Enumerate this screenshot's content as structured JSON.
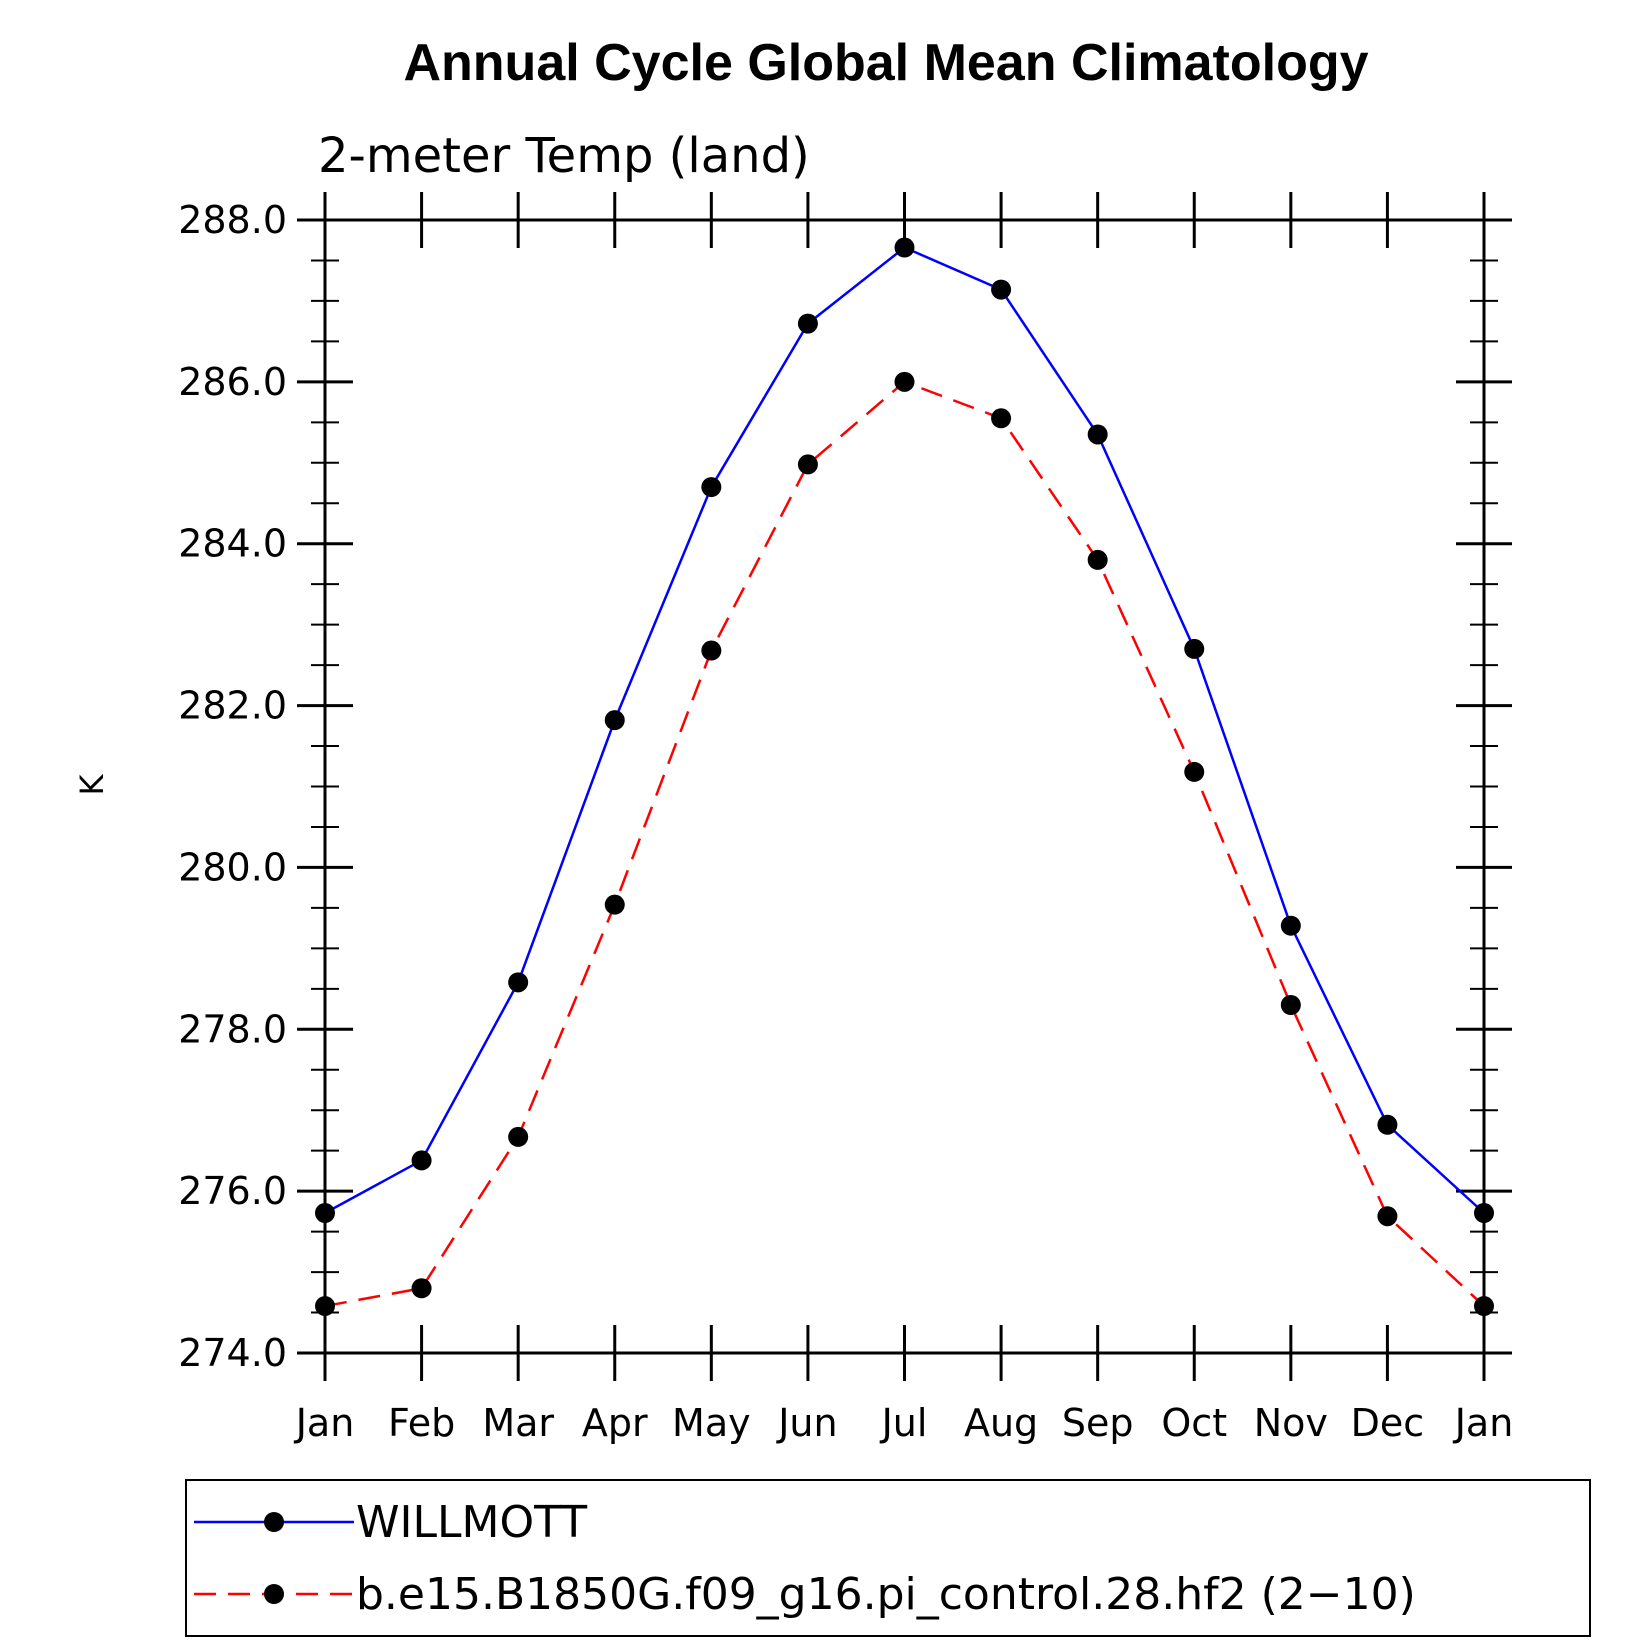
{
  "chart_data": {
    "type": "line",
    "title": "Annual Cycle Global Mean Climatology",
    "subtitle": "2-meter Temp (land)",
    "ylabel": "K",
    "xlabel": "",
    "categories": [
      "Jan",
      "Feb",
      "Mar",
      "Apr",
      "May",
      "Jun",
      "Jul",
      "Aug",
      "Sep",
      "Oct",
      "Nov",
      "Dec",
      "Jan"
    ],
    "ylim": [
      274.0,
      288.0
    ],
    "yticks": [
      "274.0",
      "276.0",
      "278.0",
      "280.0",
      "282.0",
      "284.0",
      "286.0",
      "288.0"
    ],
    "yminor_step": 0.5,
    "grid": false,
    "legend_position": "bottom",
    "series": [
      {
        "name": "WILLMOTT",
        "color": "#0000ff",
        "dash": "solid",
        "marker": "filled-circle",
        "values": [
          275.73,
          276.38,
          278.58,
          281.82,
          284.7,
          286.72,
          287.66,
          287.14,
          285.35,
          282.7,
          279.28,
          276.82,
          275.73
        ]
      },
      {
        "name": "b.e15.B1850G.f09_g16.pi_control.28.hf2 (2−10)",
        "color": "#ff0000",
        "dash": "dashed",
        "marker": "filled-circle",
        "values": [
          274.58,
          274.8,
          276.67,
          279.54,
          282.68,
          284.98,
          286.0,
          285.55,
          283.8,
          281.18,
          278.3,
          275.69,
          274.58
        ]
      }
    ]
  }
}
